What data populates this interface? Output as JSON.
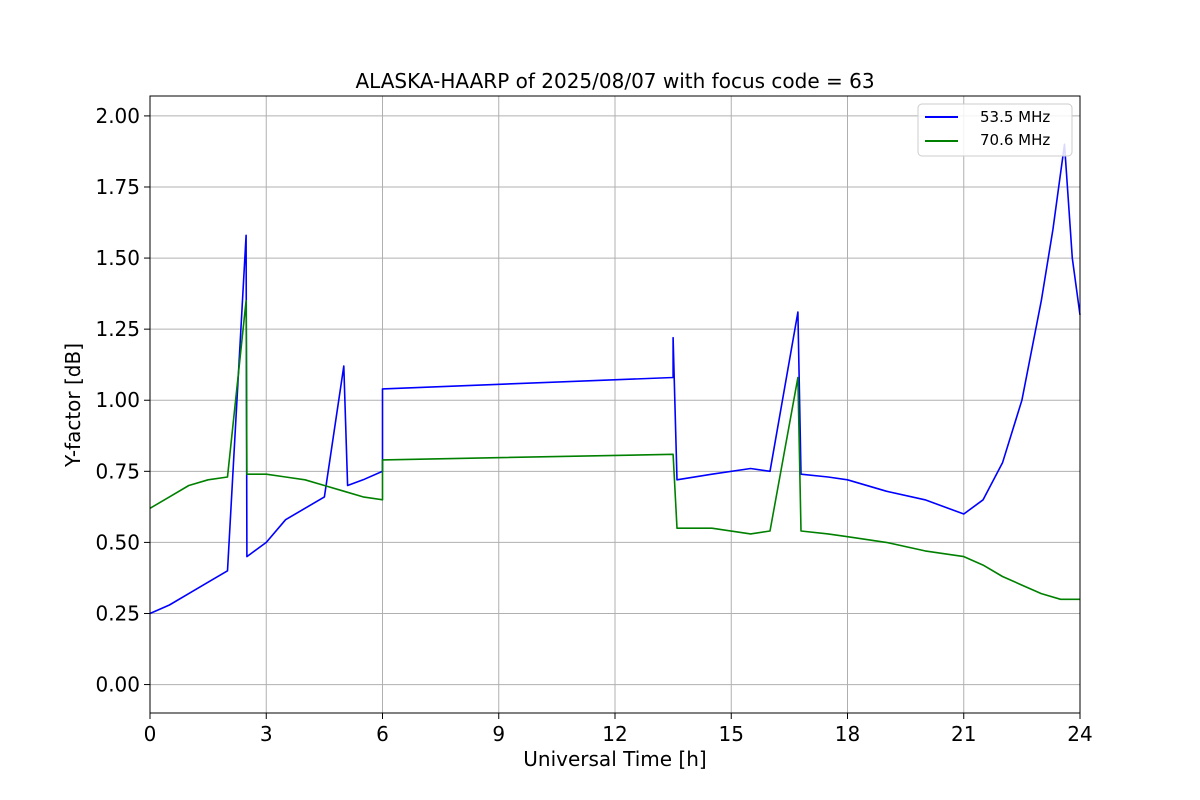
{
  "chart_data": {
    "type": "line",
    "title": "ALASKA-HAARP of 2025/08/07 with focus code = 63",
    "xlabel": "Universal Time [h]",
    "ylabel": "Y-factor [dB]",
    "xlim": [
      0,
      24
    ],
    "ylim": [
      -0.1,
      2.07
    ],
    "xticks": [
      0,
      3,
      6,
      9,
      12,
      15,
      18,
      21,
      24
    ],
    "xtick_labels": [
      "0",
      "3",
      "6",
      "9",
      "12",
      "15",
      "18",
      "21",
      "24"
    ],
    "yticks": [
      0.0,
      0.25,
      0.5,
      0.75,
      1.0,
      1.25,
      1.5,
      1.75,
      2.0
    ],
    "ytick_labels": [
      "0.00",
      "0.25",
      "0.50",
      "0.75",
      "1.00",
      "1.25",
      "1.50",
      "1.75",
      "2.00"
    ],
    "grid": true,
    "legend_position": "top-right",
    "series": [
      {
        "name": "53.5 MHz",
        "color": "#0000ff",
        "points": [
          [
            0.0,
            0.25
          ],
          [
            0.5,
            0.28
          ],
          [
            1.0,
            0.32
          ],
          [
            1.5,
            0.36
          ],
          [
            2.0,
            0.4
          ],
          [
            2.48,
            1.58
          ],
          [
            2.5,
            0.45
          ],
          [
            3.0,
            0.5
          ],
          [
            3.5,
            0.58
          ],
          [
            4.0,
            0.62
          ],
          [
            4.5,
            0.66
          ],
          [
            5.0,
            1.12
          ],
          [
            5.1,
            0.7
          ],
          [
            5.5,
            0.72
          ],
          [
            6.0,
            0.75
          ],
          [
            6.0,
            1.04
          ],
          [
            13.5,
            1.08
          ],
          [
            13.5,
            1.22
          ],
          [
            13.6,
            0.72
          ],
          [
            14.5,
            0.74
          ],
          [
            15.5,
            0.76
          ],
          [
            16.0,
            0.75
          ],
          [
            16.72,
            1.31
          ],
          [
            16.8,
            0.74
          ],
          [
            17.5,
            0.73
          ],
          [
            18.0,
            0.72
          ],
          [
            19.0,
            0.68
          ],
          [
            20.0,
            0.65
          ],
          [
            21.0,
            0.6
          ],
          [
            21.5,
            0.65
          ],
          [
            22.0,
            0.78
          ],
          [
            22.5,
            1.0
          ],
          [
            23.0,
            1.35
          ],
          [
            23.3,
            1.6
          ],
          [
            23.6,
            1.9
          ],
          [
            23.8,
            1.5
          ],
          [
            24.0,
            1.3
          ]
        ]
      },
      {
        "name": "70.6 MHz",
        "color": "#008000",
        "points": [
          [
            0.0,
            0.62
          ],
          [
            0.5,
            0.66
          ],
          [
            1.0,
            0.7
          ],
          [
            1.5,
            0.72
          ],
          [
            2.0,
            0.73
          ],
          [
            2.48,
            1.35
          ],
          [
            2.5,
            0.74
          ],
          [
            3.0,
            0.74
          ],
          [
            3.5,
            0.73
          ],
          [
            4.0,
            0.72
          ],
          [
            4.5,
            0.7
          ],
          [
            5.0,
            0.68
          ],
          [
            5.5,
            0.66
          ],
          [
            6.0,
            0.65
          ],
          [
            6.0,
            0.79
          ],
          [
            13.5,
            0.81
          ],
          [
            13.6,
            0.55
          ],
          [
            14.5,
            0.55
          ],
          [
            15.5,
            0.53
          ],
          [
            16.0,
            0.54
          ],
          [
            16.72,
            1.08
          ],
          [
            16.8,
            0.54
          ],
          [
            17.5,
            0.53
          ],
          [
            18.0,
            0.52
          ],
          [
            19.0,
            0.5
          ],
          [
            20.0,
            0.47
          ],
          [
            21.0,
            0.45
          ],
          [
            21.5,
            0.42
          ],
          [
            22.0,
            0.38
          ],
          [
            22.5,
            0.35
          ],
          [
            23.0,
            0.32
          ],
          [
            23.5,
            0.3
          ],
          [
            24.0,
            0.3
          ]
        ]
      }
    ]
  }
}
